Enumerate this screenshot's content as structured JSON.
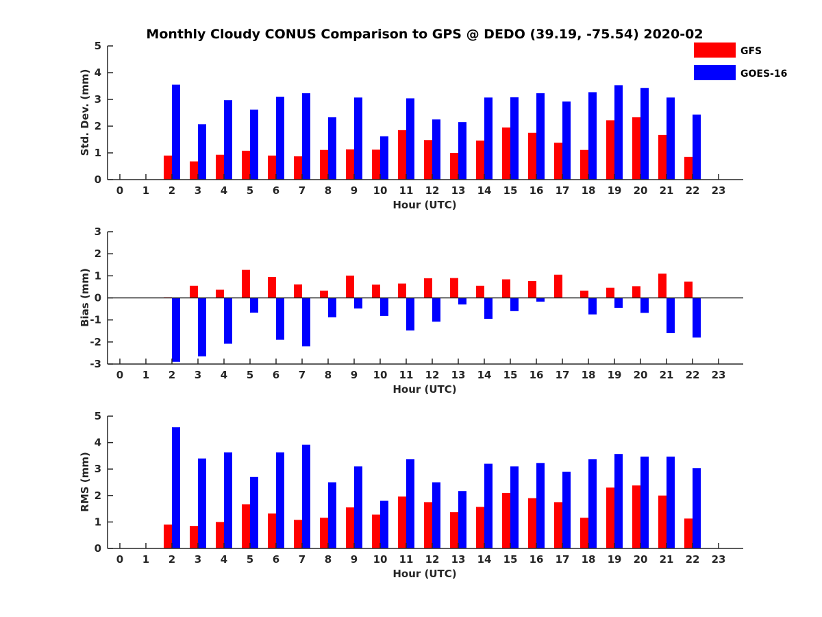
{
  "title": "Monthly Cloudy CONUS Comparison to GPS @ DEDO (39.19, -75.54) 2020-02",
  "legend": [
    {
      "label": "GFS",
      "color": "#ff0000"
    },
    {
      "label": "GOES-16",
      "color": "#0000ff"
    }
  ],
  "chart_data": [
    {
      "type": "bar",
      "xlabel": "Hour (UTC)",
      "ylabel": "Std. Dev. (mm)",
      "ylim": [
        0,
        5
      ],
      "yticks": [
        0,
        1,
        2,
        3,
        4,
        5
      ],
      "categories": [
        "0",
        "1",
        "2",
        "3",
        "4",
        "5",
        "6",
        "7",
        "8",
        "9",
        "10",
        "11",
        "12",
        "13",
        "14",
        "15",
        "16",
        "17",
        "18",
        "19",
        "20",
        "21",
        "22",
        "23"
      ],
      "series": [
        {
          "name": "GFS",
          "color": "#ff0000",
          "values": [
            null,
            null,
            0.9,
            0.68,
            0.93,
            1.08,
            0.9,
            0.87,
            1.11,
            1.13,
            1.12,
            1.85,
            1.48,
            1.0,
            1.46,
            1.95,
            1.75,
            1.38,
            1.11,
            2.22,
            2.33,
            1.67,
            0.85,
            null
          ]
        },
        {
          "name": "GOES-16",
          "color": "#0000ff",
          "values": [
            null,
            null,
            3.55,
            2.07,
            2.97,
            2.62,
            3.1,
            3.23,
            2.33,
            3.07,
            1.62,
            3.04,
            2.25,
            2.15,
            3.07,
            3.08,
            3.23,
            2.92,
            3.27,
            3.53,
            3.43,
            3.07,
            2.43,
            null
          ]
        }
      ]
    },
    {
      "type": "bar",
      "xlabel": "Hour (UTC)",
      "ylabel": "Bias (mm)",
      "ylim": [
        -3,
        3
      ],
      "yticks": [
        -3,
        -2,
        -1,
        0,
        1,
        2,
        3
      ],
      "categories": [
        "0",
        "1",
        "2",
        "3",
        "4",
        "5",
        "6",
        "7",
        "8",
        "9",
        "10",
        "11",
        "12",
        "13",
        "14",
        "15",
        "16",
        "17",
        "18",
        "19",
        "20",
        "21",
        "22",
        "23"
      ],
      "series": [
        {
          "name": "GFS",
          "color": "#ff0000",
          "values": [
            null,
            null,
            0.03,
            0.55,
            0.37,
            1.27,
            0.95,
            0.61,
            0.33,
            1.01,
            0.6,
            0.65,
            0.89,
            0.9,
            0.55,
            0.84,
            0.76,
            1.05,
            0.33,
            0.46,
            0.53,
            1.1,
            0.74,
            null
          ]
        },
        {
          "name": "GOES-16",
          "color": "#0000ff",
          "values": [
            null,
            null,
            -2.9,
            -2.65,
            -2.08,
            -0.67,
            -1.9,
            -2.2,
            -0.88,
            -0.48,
            -0.82,
            -1.48,
            -1.08,
            -0.3,
            -0.95,
            -0.6,
            -0.17,
            null,
            -0.75,
            -0.45,
            -0.68,
            -1.6,
            -1.8,
            null
          ]
        }
      ]
    },
    {
      "type": "bar",
      "xlabel": "Hour (UTC)",
      "ylabel": "RMS (mm)",
      "ylim": [
        0,
        5
      ],
      "yticks": [
        0,
        1,
        2,
        3,
        4,
        5
      ],
      "categories": [
        "0",
        "1",
        "2",
        "3",
        "4",
        "5",
        "6",
        "7",
        "8",
        "9",
        "10",
        "11",
        "12",
        "13",
        "14",
        "15",
        "16",
        "17",
        "18",
        "19",
        "20",
        "21",
        "22",
        "23"
      ],
      "series": [
        {
          "name": "GFS",
          "color": "#ff0000",
          "values": [
            null,
            null,
            0.9,
            0.85,
            1.0,
            1.67,
            1.32,
            1.08,
            1.16,
            1.55,
            1.28,
            1.96,
            1.75,
            1.37,
            1.57,
            2.1,
            1.9,
            1.75,
            1.16,
            2.3,
            2.38,
            2.0,
            1.13,
            null
          ]
        },
        {
          "name": "GOES-16",
          "color": "#0000ff",
          "values": [
            null,
            null,
            4.58,
            3.4,
            3.63,
            2.7,
            3.63,
            3.92,
            2.5,
            3.1,
            1.8,
            3.37,
            2.5,
            2.17,
            3.2,
            3.1,
            3.23,
            2.9,
            3.37,
            3.57,
            3.47,
            3.47,
            3.03,
            null
          ]
        }
      ]
    }
  ]
}
